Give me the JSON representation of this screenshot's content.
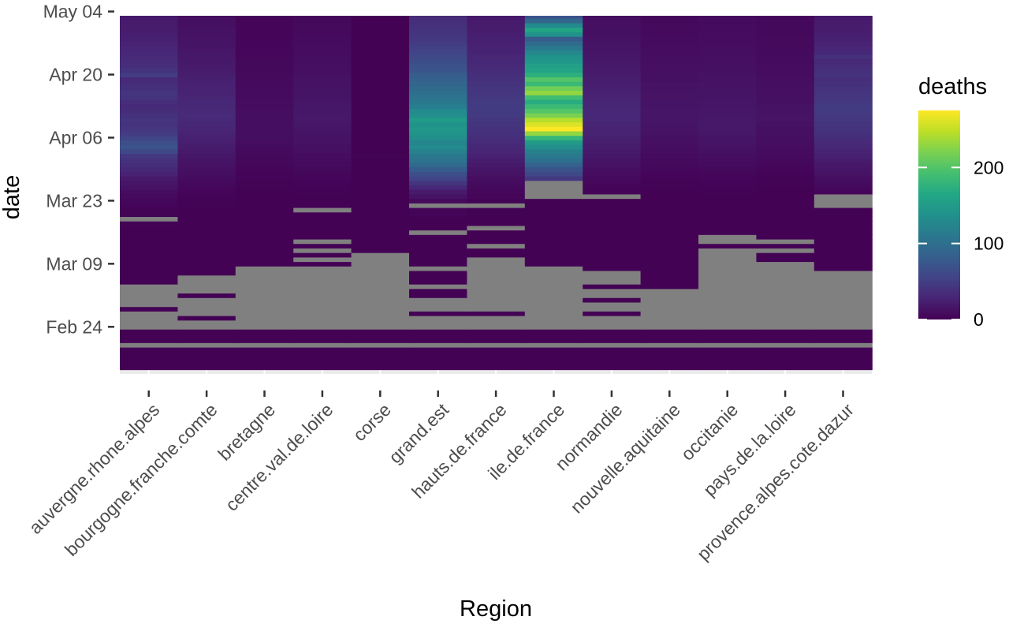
{
  "chart_data": {
    "type": "heatmap",
    "title": "",
    "xlabel": "Region",
    "ylabel": "date",
    "legend_title": "deaths",
    "legend_position": "right",
    "legend_ticks": [
      0,
      100,
      200
    ],
    "color_range": [
      0,
      275
    ],
    "na_color": "#808080",
    "colorscale": "viridis",
    "regions": [
      "auvergne.rhone.alpes",
      "bourgogne.franche.comte",
      "bretagne",
      "centre.val.de.loire",
      "corse",
      "grand.est",
      "hauts.de.france",
      "ile.de.france",
      "normandie",
      "nouvelle.aquitaine",
      "occitanie",
      "pays.de.la.loire",
      "provence.alpes.cote.dazur"
    ],
    "date_ticks": [
      "Feb 24",
      "Mar 09",
      "Mar 23",
      "Apr 06",
      "Apr 20",
      "May 04"
    ],
    "date_range": [
      "Feb 15",
      "May 05"
    ],
    "dates": [
      "Feb 15",
      "Feb 16",
      "Feb 17",
      "Feb 18",
      "Feb 19",
      "Feb 20",
      "Feb 21",
      "Feb 22",
      "Feb 23",
      "Feb 24",
      "Feb 25",
      "Feb 26",
      "Feb 27",
      "Feb 28",
      "Feb 29",
      "Mar 01",
      "Mar 02",
      "Mar 03",
      "Mar 04",
      "Mar 05",
      "Mar 06",
      "Mar 07",
      "Mar 08",
      "Mar 09",
      "Mar 10",
      "Mar 11",
      "Mar 12",
      "Mar 13",
      "Mar 14",
      "Mar 15",
      "Mar 16",
      "Mar 17",
      "Mar 18",
      "Mar 19",
      "Mar 20",
      "Mar 21",
      "Mar 22",
      "Mar 23",
      "Mar 24",
      "Mar 25",
      "Mar 26",
      "Mar 27",
      "Mar 28",
      "Mar 29",
      "Mar 30",
      "Mar 31",
      "Apr 01",
      "Apr 02",
      "Apr 03",
      "Apr 04",
      "Apr 05",
      "Apr 06",
      "Apr 07",
      "Apr 08",
      "Apr 09",
      "Apr 10",
      "Apr 11",
      "Apr 12",
      "Apr 13",
      "Apr 14",
      "Apr 15",
      "Apr 16",
      "Apr 17",
      "Apr 18",
      "Apr 19",
      "Apr 20",
      "Apr 21",
      "Apr 22",
      "Apr 23",
      "Apr 24",
      "Apr 25",
      "Apr 26",
      "Apr 27",
      "Apr 28",
      "Apr 29",
      "Apr 30",
      "May 01",
      "May 02",
      "May 03",
      "May 04",
      "May 05"
    ],
    "values": [
      [
        1,
        1,
        1,
        1,
        1,
        1,
        1,
        1,
        1,
        1,
        1,
        1,
        1
      ],
      [
        1,
        1,
        1,
        1,
        1,
        1,
        1,
        1,
        1,
        1,
        1,
        1,
        1
      ],
      [
        1,
        1,
        1,
        1,
        1,
        1,
        1,
        1,
        1,
        1,
        1,
        1,
        1
      ],
      [
        1,
        1,
        1,
        1,
        1,
        1,
        1,
        1,
        1,
        1,
        1,
        1,
        1
      ],
      [
        1,
        1,
        1,
        1,
        1,
        1,
        1,
        1,
        1,
        1,
        1,
        1,
        1
      ],
      [
        null,
        null,
        null,
        null,
        null,
        null,
        null,
        null,
        null,
        null,
        null,
        null,
        null
      ],
      [
        1,
        1,
        1,
        1,
        1,
        1,
        1,
        1,
        1,
        1,
        1,
        1,
        1
      ],
      [
        1,
        1,
        1,
        1,
        1,
        1,
        1,
        1,
        1,
        1,
        1,
        1,
        1
      ],
      [
        1,
        1,
        1,
        1,
        1,
        1,
        1,
        1,
        1,
        1,
        1,
        1,
        1
      ],
      [
        null,
        null,
        null,
        null,
        null,
        null,
        null,
        null,
        null,
        null,
        null,
        null,
        null
      ],
      [
        null,
        null,
        null,
        null,
        null,
        null,
        null,
        null,
        null,
        null,
        null,
        null,
        null
      ],
      [
        null,
        1,
        null,
        null,
        null,
        null,
        null,
        null,
        null,
        null,
        null,
        null,
        null
      ],
      [
        null,
        null,
        null,
        null,
        null,
        1,
        1,
        null,
        1,
        null,
        null,
        null,
        null
      ],
      [
        1,
        null,
        null,
        null,
        null,
        null,
        null,
        null,
        null,
        null,
        null,
        null,
        null
      ],
      [
        null,
        null,
        null,
        null,
        null,
        null,
        null,
        null,
        null,
        null,
        null,
        null,
        null
      ],
      [
        null,
        null,
        null,
        null,
        null,
        null,
        null,
        null,
        1,
        null,
        null,
        null,
        null
      ],
      [
        null,
        1,
        null,
        null,
        null,
        1,
        null,
        null,
        null,
        null,
        null,
        null,
        null
      ],
      [
        null,
        null,
        null,
        null,
        null,
        1,
        null,
        null,
        null,
        null,
        null,
        null,
        null
      ],
      [
        null,
        null,
        null,
        null,
        null,
        null,
        null,
        null,
        1,
        1,
        null,
        null,
        null
      ],
      [
        1,
        null,
        null,
        null,
        null,
        1,
        null,
        null,
        null,
        1,
        null,
        null,
        null
      ],
      [
        1,
        null,
        null,
        null,
        null,
        1,
        null,
        null,
        null,
        1,
        null,
        null,
        null
      ],
      [
        1,
        1,
        null,
        null,
        null,
        1,
        null,
        null,
        null,
        1,
        null,
        null,
        null
      ],
      [
        1,
        1,
        null,
        null,
        null,
        null,
        null,
        null,
        1,
        1,
        null,
        null,
        1
      ],
      [
        1,
        1,
        1,
        1,
        null,
        1,
        null,
        1,
        1,
        1,
        null,
        null,
        1
      ],
      [
        1,
        1,
        1,
        null,
        null,
        1,
        null,
        1,
        1,
        1,
        null,
        1,
        1
      ],
      [
        1,
        1,
        1,
        1,
        null,
        1,
        1,
        1,
        1,
        1,
        null,
        1,
        1
      ],
      [
        1,
        1,
        1,
        null,
        1,
        1,
        1,
        1,
        1,
        1,
        null,
        null,
        1
      ],
      [
        1,
        1,
        1,
        1,
        1,
        1,
        null,
        1,
        1,
        1,
        1,
        1,
        1
      ],
      [
        1,
        1,
        1,
        null,
        1,
        1,
        1,
        1,
        1,
        1,
        null,
        null,
        1
      ],
      [
        1,
        1,
        1,
        1,
        1,
        1,
        1,
        1,
        1,
        1,
        null,
        1,
        1
      ],
      [
        1,
        1,
        1,
        1,
        1,
        null,
        1,
        1,
        1,
        1,
        1,
        1,
        1
      ],
      [
        1,
        1,
        1,
        1,
        1,
        1,
        null,
        1,
        1,
        1,
        1,
        1,
        1
      ],
      [
        2,
        1,
        1,
        1,
        1,
        1,
        1,
        1,
        1,
        1,
        1,
        1,
        1
      ],
      [
        null,
        1,
        1,
        1,
        1,
        1,
        1,
        1,
        1,
        1,
        1,
        1,
        1
      ],
      [
        2,
        1,
        1,
        1,
        1,
        3,
        1,
        1,
        1,
        1,
        1,
        1,
        1
      ],
      [
        2,
        1,
        1,
        null,
        1,
        3,
        1,
        1,
        1,
        1,
        1,
        1,
        1
      ],
      [
        4,
        2,
        1,
        1,
        1,
        null,
        null,
        1,
        1,
        1,
        1,
        1,
        null
      ],
      [
        5,
        2,
        1,
        1,
        1,
        7,
        2,
        1,
        1,
        1,
        1,
        1,
        null
      ],
      [
        7,
        3,
        1,
        1,
        1,
        14,
        4,
        null,
        null,
        1,
        1,
        1,
        null
      ],
      [
        9,
        4,
        1,
        2,
        1,
        20,
        5,
        null,
        3,
        1,
        2,
        1,
        4
      ],
      [
        13,
        5,
        2,
        2,
        1,
        30,
        6,
        null,
        4,
        2,
        2,
        1,
        6
      ],
      [
        16,
        6,
        2,
        3,
        1,
        42,
        8,
        null,
        5,
        2,
        3,
        2,
        8
      ],
      [
        20,
        8,
        3,
        4,
        1,
        55,
        10,
        45,
        7,
        3,
        4,
        2,
        10
      ],
      [
        26,
        10,
        3,
        5,
        1,
        65,
        13,
        60,
        9,
        4,
        5,
        3,
        13
      ],
      [
        30,
        12,
        4,
        6,
        1,
        80,
        16,
        70,
        11,
        5,
        6,
        4,
        16
      ],
      [
        35,
        13,
        5,
        7,
        1,
        95,
        19,
        85,
        13,
        6,
        8,
        5,
        18
      ],
      [
        39,
        15,
        6,
        8,
        1,
        105,
        22,
        100,
        15,
        7,
        9,
        6,
        21
      ],
      [
        45,
        17,
        6,
        9,
        2,
        110,
        25,
        110,
        17,
        8,
        10,
        7,
        24
      ],
      [
        60,
        19,
        7,
        11,
        1,
        120,
        28,
        120,
        19,
        9,
        12,
        8,
        27
      ],
      [
        70,
        21,
        8,
        12,
        1,
        130,
        31,
        135,
        21,
        10,
        13,
        9,
        30
      ],
      [
        65,
        23,
        9,
        13,
        1,
        125,
        33,
        150,
        22,
        11,
        15,
        10,
        32
      ],
      [
        55,
        25,
        10,
        14,
        1,
        135,
        36,
        180,
        24,
        12,
        16,
        11,
        35
      ],
      [
        48,
        27,
        10,
        15,
        1,
        140,
        38,
        230,
        26,
        13,
        17,
        12,
        38
      ],
      [
        43,
        28,
        10,
        16,
        1,
        145,
        40,
        275,
        27,
        14,
        18,
        12,
        40
      ],
      [
        40,
        30,
        10,
        17,
        1,
        140,
        42,
        260,
        28,
        15,
        18,
        13,
        42
      ],
      [
        42,
        32,
        10,
        18,
        1,
        150,
        44,
        245,
        29,
        16,
        18,
        14,
        44
      ],
      [
        38,
        33,
        10,
        18,
        1,
        135,
        46,
        220,
        30,
        16,
        17,
        14,
        45
      ],
      [
        35,
        32,
        10,
        17,
        1,
        130,
        47,
        200,
        30,
        16,
        17,
        13,
        46
      ],
      [
        33,
        31,
        9,
        17,
        1,
        115,
        47,
        185,
        29,
        15,
        16,
        13,
        47
      ],
      [
        36,
        30,
        9,
        16,
        1,
        110,
        46,
        170,
        28,
        15,
        16,
        12,
        45
      ],
      [
        40,
        28,
        8,
        15,
        1,
        105,
        45,
        190,
        26,
        14,
        15,
        12,
        43
      ],
      [
        42,
        27,
        8,
        15,
        1,
        100,
        44,
        230,
        25,
        14,
        15,
        11,
        42
      ],
      [
        38,
        26,
        8,
        14,
        1,
        95,
        42,
        215,
        24,
        13,
        14,
        11,
        40
      ],
      [
        35,
        25,
        7,
        13,
        1,
        90,
        40,
        185,
        23,
        13,
        14,
        10,
        38
      ],
      [
        33,
        24,
        7,
        13,
        1,
        85,
        38,
        200,
        22,
        12,
        13,
        10,
        36
      ],
      [
        48,
        22,
        7,
        12,
        1,
        80,
        36,
        175,
        21,
        12,
        13,
        9,
        40
      ],
      [
        40,
        21,
        6,
        11,
        1,
        72,
        34,
        160,
        20,
        11,
        12,
        9,
        37
      ],
      [
        36,
        20,
        6,
        11,
        1,
        68,
        32,
        155,
        19,
        11,
        12,
        9,
        34
      ],
      [
        34,
        19,
        6,
        10,
        1,
        64,
        30,
        145,
        18,
        10,
        11,
        8,
        32
      ],
      [
        32,
        18,
        5,
        10,
        1,
        60,
        28,
        140,
        17,
        10,
        11,
        8,
        38
      ],
      [
        30,
        17,
        5,
        9,
        1,
        56,
        27,
        125,
        16,
        9,
        10,
        8,
        30
      ],
      [
        28,
        16,
        5,
        9,
        1,
        52,
        26,
        110,
        15,
        9,
        10,
        7,
        28
      ],
      [
        26,
        15,
        5,
        8,
        1,
        48,
        25,
        95,
        14,
        8,
        9,
        7,
        26
      ],
      [
        24,
        14,
        4,
        8,
        1,
        45,
        24,
        80,
        13,
        8,
        9,
        7,
        24
      ],
      [
        23,
        13,
        4,
        7,
        1,
        42,
        23,
        140,
        12,
        7,
        9,
        6,
        23
      ],
      [
        22,
        13,
        4,
        7,
        1,
        40,
        22,
        160,
        12,
        7,
        8,
        6,
        22
      ],
      [
        21,
        12,
        4,
        7,
        1,
        38,
        21,
        130,
        11,
        7,
        8,
        6,
        21
      ],
      [
        20,
        12,
        4,
        6,
        1,
        36,
        20,
        90,
        11,
        6,
        8,
        6,
        20
      ],
      [
        19,
        11,
        3,
        6,
        1,
        34,
        19,
        70,
        10,
        6,
        7,
        5,
        19
      ],
      [
        18,
        11,
        3,
        6,
        1,
        32,
        18,
        55,
        10,
        6,
        7,
        5,
        18
      ],
      [
        1,
        1,
        1,
        1,
        1,
        1,
        1,
        1,
        1,
        1,
        1,
        1,
        1
      ]
    ]
  }
}
